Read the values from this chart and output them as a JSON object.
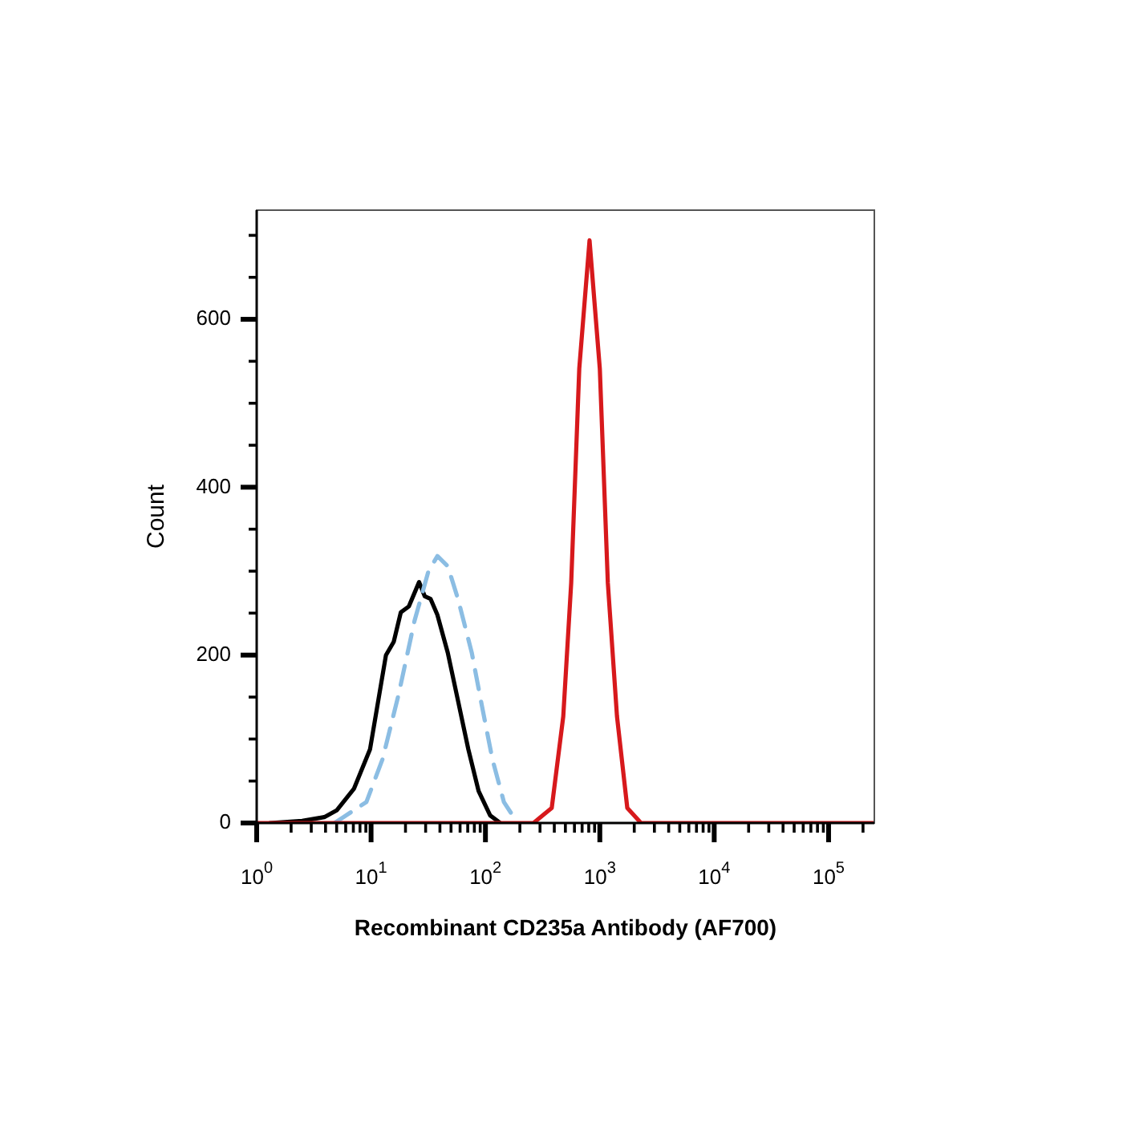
{
  "chart_data": {
    "type": "line",
    "xlabel": "Recombinant CD235a Antibody (AF700)",
    "ylabel": "Count",
    "log": "x",
    "grid": false,
    "legend": false,
    "marker": "none",
    "xlim": [
      1,
      251189
    ],
    "ylim": [
      0,
      730
    ],
    "xticks": [
      {
        "value": 1,
        "label": "10$^{0}$"
      },
      {
        "value": 2,
        "label": null
      },
      {
        "value": 3,
        "label": null
      },
      {
        "value": 4,
        "label": null
      },
      {
        "value": 5,
        "label": null
      },
      {
        "value": 6,
        "label": null
      },
      {
        "value": 7,
        "label": null
      },
      {
        "value": 8,
        "label": null
      },
      {
        "value": 9,
        "label": null
      },
      {
        "value": 10,
        "label": "10$^{1}$"
      },
      {
        "value": 20,
        "label": null
      },
      {
        "value": 30,
        "label": null
      },
      {
        "value": 40,
        "label": null
      },
      {
        "value": 50,
        "label": null
      },
      {
        "value": 60,
        "label": null
      },
      {
        "value": 70,
        "label": null
      },
      {
        "value": 80,
        "label": null
      },
      {
        "value": 90,
        "label": null
      },
      {
        "value": 100,
        "label": "10$^{2}$"
      },
      {
        "value": 200,
        "label": null
      },
      {
        "value": 300,
        "label": null
      },
      {
        "value": 400,
        "label": null
      },
      {
        "value": 500,
        "label": null
      },
      {
        "value": 600,
        "label": null
      },
      {
        "value": 700,
        "label": null
      },
      {
        "value": 800,
        "label": null
      },
      {
        "value": 900,
        "label": null
      },
      {
        "value": 1000,
        "label": "10$^{3}$"
      },
      {
        "value": 2000,
        "label": null
      },
      {
        "value": 3000,
        "label": null
      },
      {
        "value": 4000,
        "label": null
      },
      {
        "value": 5000,
        "label": null
      },
      {
        "value": 6000,
        "label": null
      },
      {
        "value": 7000,
        "label": null
      },
      {
        "value": 8000,
        "label": null
      },
      {
        "value": 9000,
        "label": null
      },
      {
        "value": 10000,
        "label": "10$^{4}$"
      },
      {
        "value": 20000,
        "label": null
      },
      {
        "value": 30000,
        "label": null
      },
      {
        "value": 40000,
        "label": null
      },
      {
        "value": 50000,
        "label": null
      },
      {
        "value": 60000,
        "label": null
      },
      {
        "value": 70000,
        "label": null
      },
      {
        "value": 80000,
        "label": null
      },
      {
        "value": 90000,
        "label": null
      },
      {
        "value": 100000,
        "label": "10$^{5}$"
      },
      {
        "value": 200000,
        "label": null
      }
    ],
    "yticks": [
      0,
      {
        "value": 50,
        "label": null
      },
      {
        "value": 100,
        "label": null
      },
      {
        "value": 150,
        "label": null
      },
      200,
      {
        "value": 250,
        "label": null
      },
      {
        "value": 300,
        "label": null
      },
      {
        "value": 350,
        "label": null
      },
      400,
      {
        "value": 450,
        "label": null
      },
      {
        "value": 500,
        "label": null
      },
      {
        "value": 550,
        "label": null
      },
      600,
      {
        "value": 650,
        "label": null
      },
      {
        "value": 700,
        "label": null
      }
    ],
    "series": [
      {
        "color": "#d7191c",
        "x": [
          1,
          263,
          380,
          479,
          562,
          661,
          813,
          1000,
          1175,
          1413,
          1738,
          2291,
          251189
        ],
        "values": [
          0,
          0,
          18,
          127,
          286,
          541,
          694,
          541,
          286,
          127,
          18,
          0,
          0
        ]
      },
      {
        "color": "#8bbde3",
        "line_style": "dashed",
        "x": [
          4.8,
          9.1,
          12.6,
          17.4,
          24.0,
          31.6,
          38.0,
          46.8,
          57.5,
          75.9,
          93.3,
          115,
          145,
          191
        ],
        "values": [
          0,
          25,
          76,
          153,
          241,
          299,
          318,
          306,
          267,
          203,
          139,
          76,
          25,
          0
        ]
      },
      {
        "color": "#000000",
        "x": [
          1.3,
          2.5,
          3.9,
          5.0,
          7.1,
          9.8,
          13.5,
          15.8,
          18.2,
          21.4,
          26.3,
          29.5,
          33.1,
          38.0,
          46.8,
          57.5,
          70.8,
          87.1,
          110,
          135
        ],
        "values": [
          0,
          2.5,
          7,
          15,
          41,
          88,
          200,
          216,
          251,
          258,
          287,
          270,
          267,
          248,
          203,
          146,
          88,
          38,
          9,
          0
        ]
      }
    ]
  }
}
